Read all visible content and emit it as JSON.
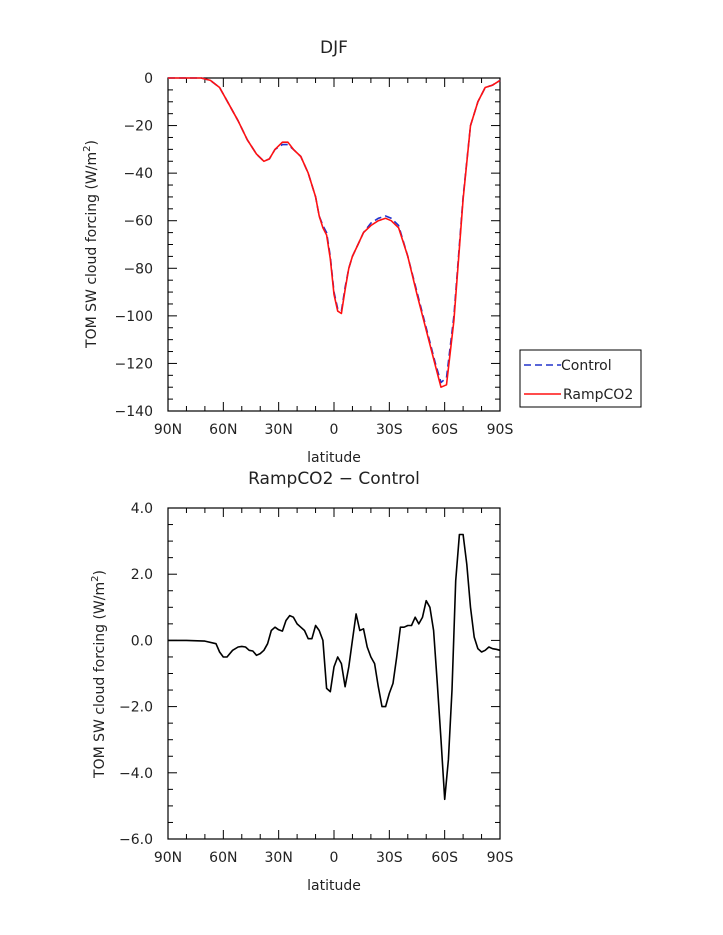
{
  "chart_data": [
    {
      "type": "line",
      "title": "DJF",
      "xlabel": "latitude",
      "ylabel": "TOM SW cloud forcing (W/m",
      "ylabel_sup": "2",
      "ylabel_end": ")",
      "xlim": [
        90,
        -90
      ],
      "ylim": [
        -140,
        0
      ],
      "xticks": [
        90,
        60,
        30,
        0,
        -30,
        -60,
        -90
      ],
      "xtick_labels": [
        "90N",
        "60N",
        "30N",
        "0",
        "30S",
        "60S",
        "90S"
      ],
      "yticks": [
        0,
        -20,
        -40,
        -60,
        -80,
        -100,
        -120,
        -140
      ],
      "ytick_labels": [
        "0",
        "−20",
        "−40",
        "−60",
        "−80",
        "−100",
        "−120",
        "−140"
      ],
      "legend": {
        "placement": "right-outside",
        "entries": [
          "Control",
          "RampCO2"
        ]
      },
      "series": [
        {
          "name": "Control",
          "color": "#2233cc",
          "dash": "dashed",
          "x": [
            90,
            80,
            72,
            67,
            62,
            57,
            52,
            47,
            42,
            38,
            35,
            32,
            28,
            25,
            22,
            18,
            14,
            10,
            8,
            6,
            4,
            2,
            0,
            -2,
            -4,
            -6,
            -8,
            -10,
            -13,
            -16,
            -20,
            -24,
            -28,
            -31,
            -35,
            -40,
            -45,
            -50,
            -55,
            -58,
            -61,
            -65,
            -70,
            -74,
            -78,
            -82,
            -86,
            -90
          ],
          "y": [
            0,
            0,
            0,
            -1,
            -4,
            -11,
            -18,
            -26,
            -32,
            -35,
            -34,
            -30,
            -28,
            -28,
            -30,
            -33,
            -40,
            -50,
            -58,
            -62,
            -65,
            -75,
            -90,
            -97,
            -98,
            -88,
            -80,
            -75,
            -70,
            -65,
            -61,
            -59,
            -58,
            -59,
            -62,
            -75,
            -90,
            -105,
            -120,
            -128,
            -126,
            -100,
            -50,
            -20,
            -10,
            -4,
            -3,
            -1
          ]
        },
        {
          "name": "RampCO2",
          "color": "#ff1111",
          "dash": "solid",
          "x": [
            90,
            80,
            72,
            67,
            62,
            57,
            52,
            47,
            42,
            38,
            35,
            32,
            28,
            25,
            22,
            18,
            14,
            10,
            8,
            6,
            4,
            2,
            0,
            -2,
            -4,
            -6,
            -8,
            -10,
            -13,
            -16,
            -20,
            -24,
            -28,
            -31,
            -35,
            -40,
            -45,
            -50,
            -55,
            -58,
            -61,
            -65,
            -70,
            -74,
            -78,
            -82,
            -86,
            -90
          ],
          "y": [
            0,
            0,
            0,
            -1,
            -4,
            -11,
            -18,
            -26,
            -32,
            -35,
            -34,
            -30,
            -27,
            -27,
            -30,
            -33,
            -40,
            -50,
            -58,
            -63,
            -66,
            -76,
            -91,
            -98,
            -99,
            -89,
            -80,
            -75,
            -70,
            -65,
            -62,
            -60,
            -59,
            -60,
            -63,
            -75,
            -91,
            -106,
            -121,
            -130,
            -129,
            -102,
            -51,
            -20,
            -10,
            -4,
            -3,
            -1
          ]
        }
      ]
    },
    {
      "type": "line",
      "title": "RampCO2 − Control",
      "xlabel": "latitude",
      "ylabel": "TOM SW cloud forcing (W/m",
      "ylabel_sup": "2",
      "ylabel_end": ")",
      "xlim": [
        90,
        -90
      ],
      "ylim": [
        -6,
        4
      ],
      "xticks": [
        90,
        60,
        30,
        0,
        -30,
        -60,
        -90
      ],
      "xtick_labels": [
        "90N",
        "60N",
        "30N",
        "0",
        "30S",
        "60S",
        "90S"
      ],
      "yticks": [
        4,
        2,
        0,
        -2,
        -4,
        -6
      ],
      "ytick_labels": [
        "4.0",
        "2.0",
        "0.0",
        "−2.0",
        "−4.0",
        "−6.0"
      ],
      "series": [
        {
          "name": "",
          "color": "#000000",
          "dash": "solid",
          "x": [
            90,
            80,
            70,
            64,
            62,
            60,
            58,
            55,
            52,
            50,
            48,
            46,
            44,
            42,
            40,
            38,
            36,
            34,
            32,
            30,
            28,
            26,
            24,
            22,
            20,
            18,
            16,
            14,
            12,
            10,
            8,
            6,
            4,
            2,
            0,
            -2,
            -4,
            -6,
            -8,
            -10,
            -12,
            -14,
            -16,
            -18,
            -20,
            -22,
            -24,
            -26,
            -28,
            -30,
            -32,
            -34,
            -36,
            -38,
            -40,
            -42,
            -44,
            -46,
            -48,
            -50,
            -52,
            -54,
            -56,
            -58,
            -60,
            -62,
            -64,
            -66,
            -68,
            -70,
            -72,
            -74,
            -76,
            -78,
            -80,
            -82,
            -84,
            -86,
            -88,
            -90
          ],
          "y": [
            0,
            0,
            -0.02,
            -0.1,
            -0.35,
            -0.5,
            -0.5,
            -0.3,
            -0.2,
            -0.18,
            -0.2,
            -0.3,
            -0.32,
            -0.45,
            -0.4,
            -0.3,
            -0.1,
            0.3,
            0.4,
            0.32,
            0.28,
            0.6,
            0.75,
            0.7,
            0.5,
            0.4,
            0.3,
            0.05,
            0.05,
            0.45,
            0.3,
            0.0,
            -1.45,
            -1.55,
            -0.8,
            -0.5,
            -0.7,
            -1.4,
            -0.8,
            0.0,
            0.8,
            0.3,
            0.35,
            -0.2,
            -0.5,
            -0.7,
            -1.4,
            -2.0,
            -2.0,
            -1.6,
            -1.3,
            -0.5,
            0.4,
            0.4,
            0.45,
            0.45,
            0.7,
            0.5,
            0.7,
            1.2,
            1.0,
            0.3,
            -1.3,
            -3.0,
            -4.8,
            -3.6,
            -1.5,
            1.8,
            3.2,
            3.2,
            2.3,
            1.0,
            0.1,
            -0.25,
            -0.35,
            -0.3,
            -0.2,
            -0.25,
            -0.27,
            -0.3
          ]
        }
      ]
    }
  ]
}
